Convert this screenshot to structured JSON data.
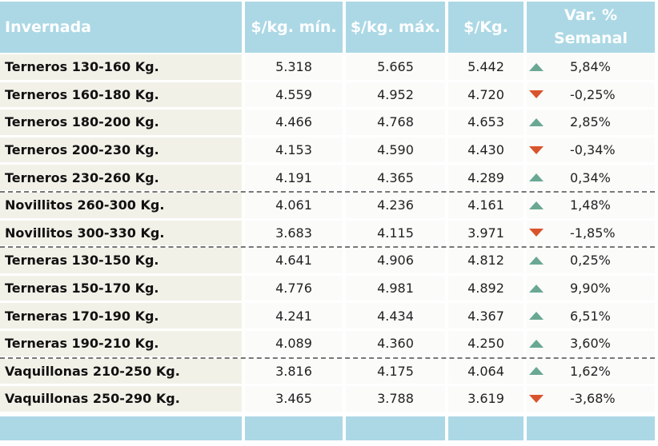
{
  "table": {
    "header": [
      "Invernada",
      "$/kg. mín.",
      "$/kg. máx.",
      "$/Kg.",
      "Var. % Semanal"
    ],
    "groups": [
      {
        "rows": [
          [
            "Terneros 130-160 Kg.",
            "5.318",
            "5.665",
            "5.442",
            "5,84%"
          ],
          [
            "Terneros 160-180 Kg.",
            "4.559",
            "4.952",
            "4.720",
            "-0,25%"
          ],
          [
            "Terneros 180-200 Kg.",
            "4.466",
            "4.768",
            "4.653",
            "2,85%"
          ],
          [
            "Terneros 200-230 Kg.",
            "4.153",
            "4.590",
            "4.430",
            "-0,34%"
          ],
          [
            "Terneros 230-260 Kg.",
            "4.191",
            "4.365",
            "4.289",
            "0,34%"
          ]
        ]
      },
      {
        "rows": [
          [
            "Novillitos 260-300 Kg.",
            "4.061",
            "4.236",
            "4.161",
            "1,48%"
          ],
          [
            "Novillitos 300-330 Kg.",
            "3.683",
            "4.115",
            "3.971",
            "-1,85%"
          ]
        ]
      },
      {
        "rows": [
          [
            "Terneras 130-150 Kg.",
            "4.641",
            "4.906",
            "4.812",
            "0,25%"
          ],
          [
            "Terneras 150-170 Kg.",
            "4.776",
            "4.981",
            "4.892",
            "9,90%"
          ],
          [
            "Terneras 170-190 Kg.",
            "4.241",
            "4.434",
            "4.367",
            "6,51%"
          ],
          [
            "Terneras 190-210 Kg.",
            "4.089",
            "4.360",
            "4.250",
            "3,60%"
          ]
        ]
      },
      {
        "rows": [
          [
            "Vaquillonas 210-250 Kg.",
            "3.816",
            "4.175",
            "4.064",
            "1,62%"
          ],
          [
            "Vaquillonas 250-290 Kg.",
            "3.465",
            "3.788",
            "3.619",
            "-3,68%"
          ]
        ]
      }
    ]
  }
}
